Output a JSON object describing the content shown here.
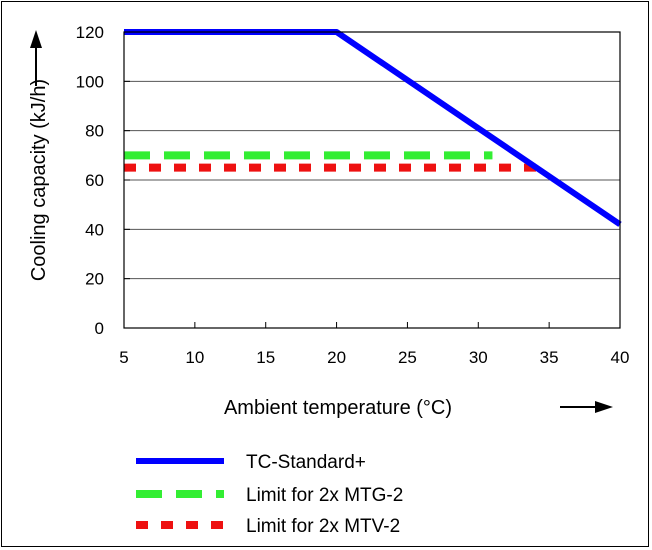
{
  "chart_data": {
    "type": "line",
    "xlabel": "Ambient temperature (°C)",
    "ylabel": "Cooling capacity (kJ/h)",
    "xlim": [
      5,
      40
    ],
    "ylim": [
      0,
      120
    ],
    "x_ticks": [
      5,
      10,
      15,
      20,
      25,
      30,
      35,
      40
    ],
    "y_ticks": [
      0,
      20,
      40,
      60,
      80,
      100,
      120
    ],
    "grid": "horizontal",
    "legend_position": "bottom",
    "series": [
      {
        "name": "TC-Standard+",
        "color": "#0000ff",
        "style": "solid",
        "points": [
          [
            5,
            120
          ],
          [
            20,
            120
          ],
          [
            40,
            42
          ]
        ]
      },
      {
        "name": "Limit for 2x MTG-2",
        "color": "#33ee33",
        "style": "dashed",
        "points": [
          [
            5,
            70
          ],
          [
            31,
            70
          ]
        ]
      },
      {
        "name": "Limit for 2x MTV-2",
        "color": "#ee1111",
        "style": "dotted",
        "points": [
          [
            5,
            65
          ],
          [
            34.5,
            65
          ]
        ]
      }
    ]
  }
}
